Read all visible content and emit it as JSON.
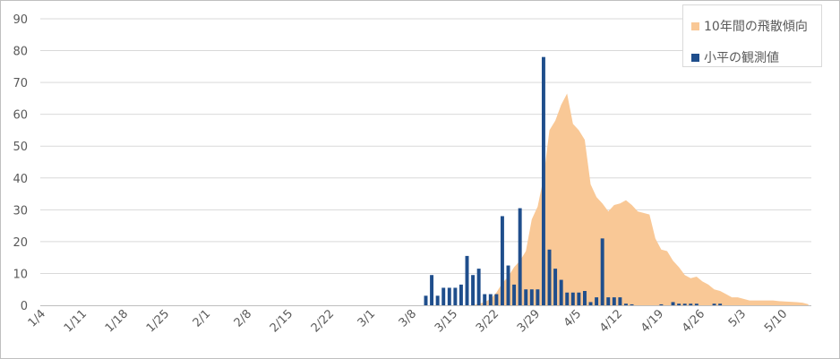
{
  "chart_data": {
    "type": "bar",
    "title": "",
    "xlabel": "",
    "ylabel": "",
    "ylim": [
      0,
      90
    ],
    "y_ticks": [
      "0",
      "10",
      "20",
      "30",
      "40",
      "50",
      "60",
      "70",
      "80",
      "90"
    ],
    "x_tick_labels": [
      "1/4",
      "1/11",
      "1/18",
      "1/25",
      "2/1",
      "2/8",
      "2/15",
      "2/22",
      "3/1",
      "3/8",
      "3/15",
      "3/22",
      "3/29",
      "4/5",
      "4/12",
      "4/19",
      "4/26",
      "5/3",
      "5/10"
    ],
    "grid": true,
    "legend_position": "top-right",
    "series": [
      {
        "name": "10年間の飛散傾向",
        "type": "area",
        "color": "#f9c896",
        "x": [
          "3/18",
          "3/19",
          "3/20",
          "3/21",
          "3/22",
          "3/23",
          "3/24",
          "3/25",
          "3/26",
          "3/27",
          "3/28",
          "3/29",
          "3/30",
          "3/31",
          "4/1",
          "4/2",
          "4/3",
          "4/4",
          "4/5",
          "4/6",
          "4/7",
          "4/8",
          "4/9",
          "4/10",
          "4/11",
          "4/12",
          "4/13",
          "4/14",
          "4/15",
          "4/16",
          "4/17",
          "4/18",
          "4/19",
          "4/20",
          "4/21",
          "4/22",
          "4/23",
          "4/24",
          "4/25",
          "4/26",
          "4/27",
          "4/28",
          "4/29",
          "4/30",
          "5/1",
          "5/2",
          "5/3",
          "5/4",
          "5/5",
          "5/6",
          "5/7",
          "5/8",
          "5/9",
          "5/10",
          "5/11",
          "5/12",
          "5/13",
          "5/14"
        ],
        "values": [
          0,
          0.5,
          1,
          2,
          4,
          7,
          9,
          12,
          14,
          17,
          27,
          31,
          40,
          55,
          58,
          63,
          66.5,
          57,
          55,
          52,
          38,
          34,
          32,
          29.5,
          31.5,
          32,
          33,
          31.5,
          29.5,
          29,
          28.5,
          21,
          17.5,
          17,
          14,
          12,
          9.5,
          8.5,
          9,
          7.5,
          6.5,
          5,
          4.5,
          3.5,
          2.5,
          2.5,
          2,
          1.5,
          1.5,
          1.5,
          1.5,
          1.5,
          1.3,
          1.2,
          1.1,
          1,
          0.8,
          0.3
        ]
      },
      {
        "name": "小平の観測値",
        "type": "bar",
        "color": "#1f4e8c",
        "x": [
          "3/10",
          "3/11",
          "3/12",
          "3/13",
          "3/14",
          "3/15",
          "3/16",
          "3/17",
          "3/18",
          "3/19",
          "3/20",
          "3/21",
          "3/22",
          "3/23",
          "3/24",
          "3/25",
          "3/26",
          "3/27",
          "3/28",
          "3/29",
          "3/30",
          "3/31",
          "4/1",
          "4/2",
          "4/3",
          "4/4",
          "4/5",
          "4/6",
          "4/7",
          "4/8",
          "4/9",
          "4/10",
          "4/11",
          "4/12",
          "4/13",
          "4/14",
          "4/15",
          "4/16",
          "4/17",
          "4/18",
          "4/19",
          "4/20",
          "4/21",
          "4/22",
          "4/23",
          "4/24",
          "4/25",
          "4/26",
          "4/27",
          "4/28",
          "4/29",
          "4/30",
          "5/1",
          "5/2",
          "5/3",
          "5/4",
          "5/5",
          "5/6",
          "5/7",
          "5/8",
          "5/9",
          "5/10",
          "5/11",
          "5/12",
          "5/13",
          "5/14"
        ],
        "values": [
          3,
          9.5,
          3,
          5.5,
          5.5,
          5.5,
          6.5,
          15.5,
          9.5,
          11.5,
          3.5,
          3.5,
          3.5,
          28,
          12.5,
          6.5,
          30.5,
          5,
          5,
          5,
          78,
          17.5,
          11.5,
          8,
          4,
          4,
          4,
          4.5,
          1,
          2.5,
          21,
          2.5,
          2.5,
          2.5,
          0.5,
          0.3,
          0,
          0,
          0,
          0,
          0.3,
          0,
          1,
          0.5,
          0.5,
          0.5,
          0.5,
          0,
          0,
          0.5,
          0.5,
          0,
          0,
          0,
          0,
          0,
          0,
          0,
          0,
          0,
          0,
          0,
          0,
          0,
          0,
          0
        ]
      }
    ]
  }
}
